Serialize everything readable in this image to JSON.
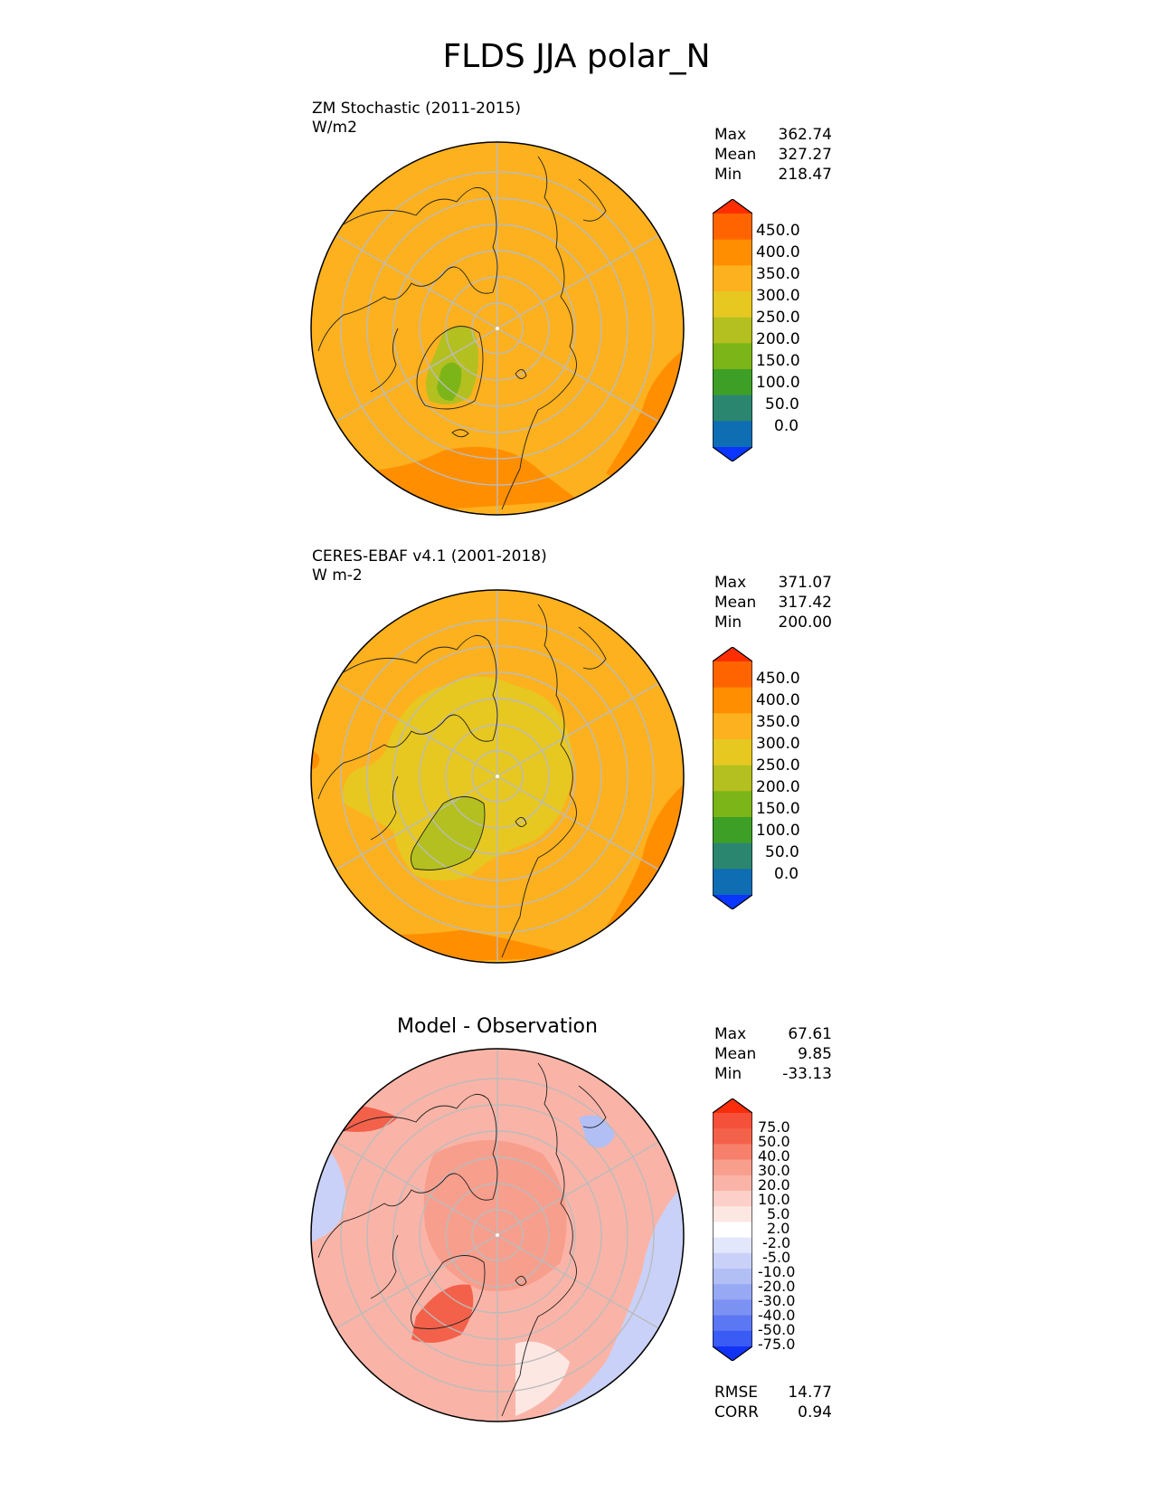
{
  "title": "FLDS JJA polar_N",
  "panels": [
    {
      "title_lines": [
        "ZM Stochastic (2011-2015)",
        "W/m2"
      ],
      "stats": [
        [
          "Max",
          "362.74"
        ],
        [
          "Mean",
          "327.27"
        ],
        [
          "Min",
          "218.47"
        ]
      ],
      "colorbar_ticks": [
        "450.0",
        "400.0",
        "350.0",
        "300.0",
        "250.0",
        "200.0",
        "150.0",
        "100.0",
        "50.0",
        "0.0"
      ],
      "background_color": "#fdb11e",
      "greenland_color": "#b3c020"
    },
    {
      "title_lines": [
        "CERES-EBAF v4.1 (2001-2018)",
        "W m-2"
      ],
      "stats": [
        [
          "Max",
          "371.07"
        ],
        [
          "Mean",
          "317.42"
        ],
        [
          "Min",
          "200.00"
        ]
      ],
      "colorbar_ticks": [
        "450.0",
        "400.0",
        "350.0",
        "300.0",
        "250.0",
        "200.0",
        "150.0",
        "100.0",
        "50.0",
        "0.0"
      ],
      "background_color": "#fdb11e",
      "arctic_color": "#e6c821",
      "greenland_color": "#b3c020"
    },
    {
      "title": "Model - Observation",
      "stats": [
        [
          "Max",
          "67.61"
        ],
        [
          "Mean",
          "9.85"
        ],
        [
          "Min",
          "-33.13"
        ]
      ],
      "colorbar_ticks": [
        "75.0",
        "50.0",
        "40.0",
        "30.0",
        "20.0",
        "10.0",
        "5.0",
        "2.0",
        "-2.0",
        "-5.0",
        "-10.0",
        "-20.0",
        "-30.0",
        "-40.0",
        "-50.0",
        "-75.0"
      ],
      "extra_stats": [
        [
          "RMSE",
          "14.77"
        ],
        [
          "CORR",
          "0.94"
        ]
      ]
    }
  ],
  "colormaps": {
    "absolute": [
      "#ff2e00",
      "#ff6400",
      "#ff8f00",
      "#fdb11e",
      "#e6c821",
      "#b3c020",
      "#7cb518",
      "#3e9f27",
      "#2b8670",
      "#0e6db3",
      "#0a36ff"
    ],
    "difference": [
      "#fb2d0b",
      "#f4503a",
      "#f4614a",
      "#f7806c",
      "#f89e8d",
      "#fab4a7",
      "#fcd0c8",
      "#fde7e3",
      "#ffffff",
      "#e3e7fc",
      "#c9d1f8",
      "#b2bff5",
      "#97a8f4",
      "#7c92f3",
      "#5c77f3",
      "#3a5bf4",
      "#1133f6"
    ]
  }
}
